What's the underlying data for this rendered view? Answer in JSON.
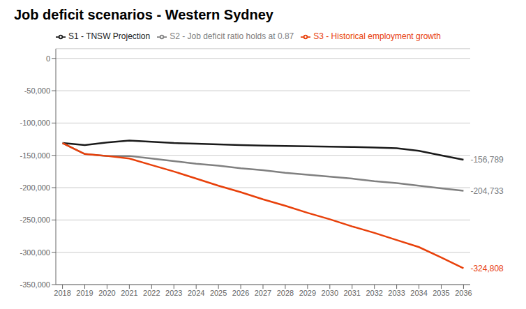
{
  "chart_data": {
    "type": "line",
    "title": "Job deficit scenarios - Western Sydney",
    "x": [
      2018,
      2019,
      2020,
      2021,
      2022,
      2023,
      2024,
      2025,
      2026,
      2027,
      2028,
      2029,
      2030,
      2031,
      2032,
      2033,
      2034,
      2035,
      2036
    ],
    "series": [
      {
        "name": "S1 - TNSW Projection",
        "color": "#1a1a1a",
        "values": [
          -131000,
          -134000,
          -130000,
          -127000,
          -129000,
          -131000,
          -132000,
          -133000,
          -134000,
          -135000,
          -135500,
          -136000,
          -136500,
          -137000,
          -138000,
          -139000,
          -143000,
          -150000,
          -156789
        ]
      },
      {
        "name": "S2 - Job deficit ratio holds at 0.87",
        "color": "#808080",
        "values": [
          -131000,
          -148000,
          -151000,
          -151000,
          -155000,
          -159000,
          -163000,
          -166000,
          -170000,
          -173000,
          -177000,
          -180000,
          -183000,
          -186000,
          -190000,
          -193000,
          -197000,
          -201000,
          -204733
        ]
      },
      {
        "name": "S3 - Historical employment growth",
        "color": "#e8400a",
        "values": [
          -131000,
          -148000,
          -151000,
          -155000,
          -165000,
          -175000,
          -186000,
          -197000,
          -207000,
          -218000,
          -228000,
          -239000,
          -249000,
          -260000,
          -270000,
          -281000,
          -292000,
          -308000,
          -324808
        ]
      }
    ],
    "annotations": [
      {
        "text": "-156,789",
        "x": 2036,
        "y": -156789,
        "color": "#808080"
      },
      {
        "text": "-204,733",
        "x": 2036,
        "y": -204733,
        "color": "#808080"
      },
      {
        "text": "-324,808",
        "x": 2036,
        "y": -324808,
        "color": "#e8400a"
      }
    ],
    "xlim": [
      2017.7,
      2036.3
    ],
    "xticks": [
      2018,
      2019,
      2020,
      2021,
      2022,
      2023,
      2024,
      2025,
      2026,
      2027,
      2028,
      2029,
      2030,
      2031,
      2032,
      2033,
      2034,
      2035,
      2036
    ],
    "ylim": [
      -350000,
      15000
    ],
    "yticks": [
      0,
      {
        "value": -50000,
        "label": "-50,000"
      },
      {
        "value": -100000,
        "label": "-100,000"
      },
      {
        "value": -150000,
        "label": "-150,000"
      },
      {
        "value": -200000,
        "label": "-200,000"
      },
      {
        "value": -250000,
        "label": "-250,000"
      },
      {
        "value": -300000,
        "label": "-300,000"
      },
      {
        "value": -350000,
        "label": "-350,000"
      }
    ],
    "grid": true,
    "legend": "top"
  }
}
